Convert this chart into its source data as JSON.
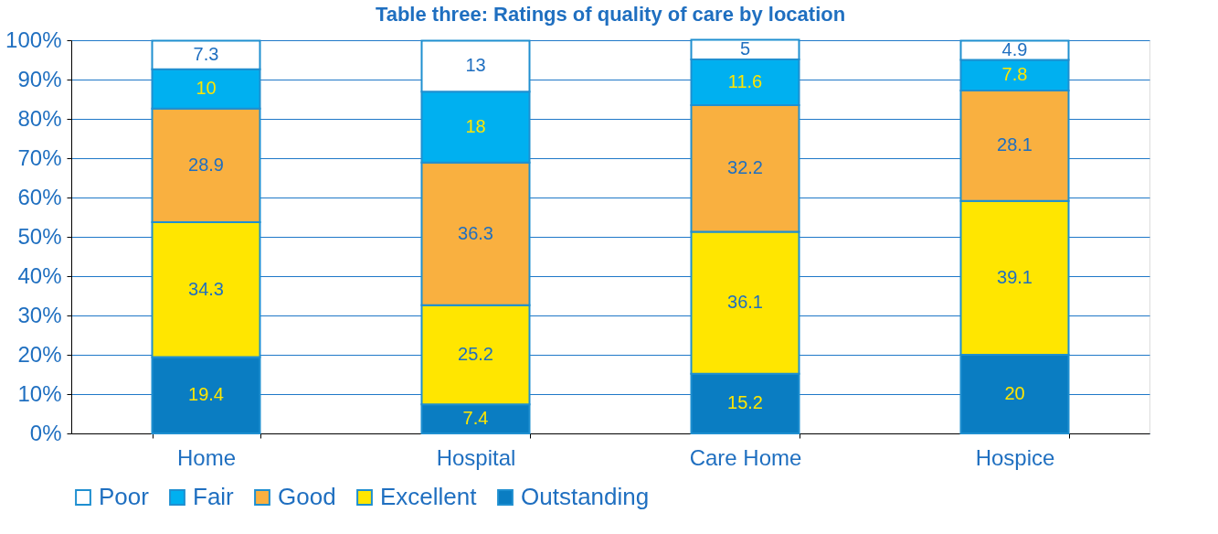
{
  "chart_data": {
    "type": "bar",
    "title": "Table three: Ratings of quality of care by location",
    "stacked": true,
    "categories": [
      "Home",
      "Hospital",
      "Care Home",
      "Hospice"
    ],
    "series": [
      {
        "name": "Outstanding",
        "color": "#0a7dc2",
        "values": [
          19.4,
          7.4,
          15.2,
          20
        ]
      },
      {
        "name": "Excellent",
        "color": "#ffe600",
        "values": [
          34.3,
          25.2,
          36.1,
          39.1
        ]
      },
      {
        "name": "Good",
        "color": "#f9b040",
        "values": [
          28.9,
          36.3,
          32.2,
          28.1
        ]
      },
      {
        "name": "Fair",
        "color": "#00b0f0",
        "values": [
          10,
          18,
          11.6,
          7.8
        ]
      },
      {
        "name": "Poor",
        "color": "#ffffff",
        "values": [
          7.3,
          13,
          5,
          4.9
        ]
      }
    ],
    "ylim": [
      0,
      100
    ],
    "yticks": [
      {
        "value": 0,
        "label": "0%"
      },
      {
        "value": 10,
        "label": "10%"
      },
      {
        "value": 20,
        "label": "20%"
      },
      {
        "value": 30,
        "label": "30%"
      },
      {
        "value": 40,
        "label": "40%"
      },
      {
        "value": 50,
        "label": "50%"
      },
      {
        "value": 60,
        "label": "60%"
      },
      {
        "value": 70,
        "label": "70%"
      },
      {
        "value": 80,
        "label": "80%"
      },
      {
        "value": 90,
        "label": "90%"
      },
      {
        "value": 100,
        "label": "100%"
      }
    ],
    "grid": "y",
    "legend": "bottom",
    "data_labels": true
  }
}
